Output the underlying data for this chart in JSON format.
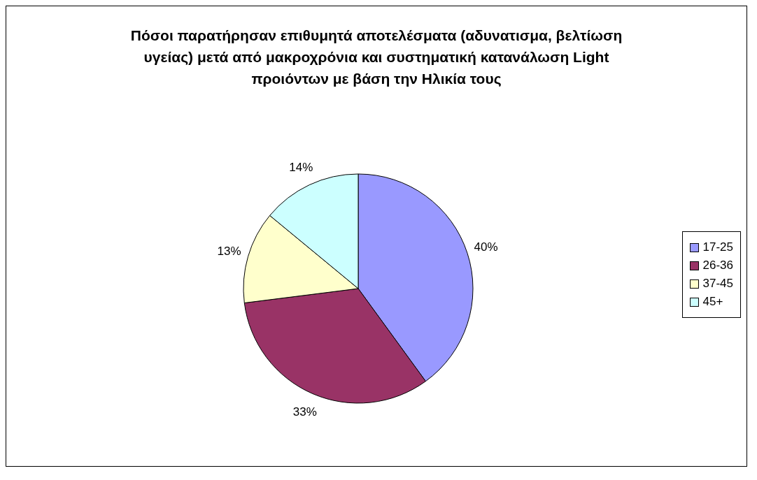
{
  "chart_data": {
    "type": "pie",
    "title": "Πόσοι παρατήρησαν επιθυμητά αποτελέσματα (αδυνατισμα, βελτίωση υγείας) μετά από μακροχρόνια και συστηματική κατανάλωση Light προιόντων με βάση την Ηλικία τους",
    "categories": [
      "17-25",
      "26-36",
      "37-45",
      "45+"
    ],
    "values": [
      40,
      33,
      13,
      14
    ],
    "value_labels": [
      "40%",
      "33%",
      "13%",
      "14%"
    ],
    "colors": [
      "#9999ff",
      "#993366",
      "#ffffcc",
      "#ccffff"
    ],
    "legend": "right"
  }
}
